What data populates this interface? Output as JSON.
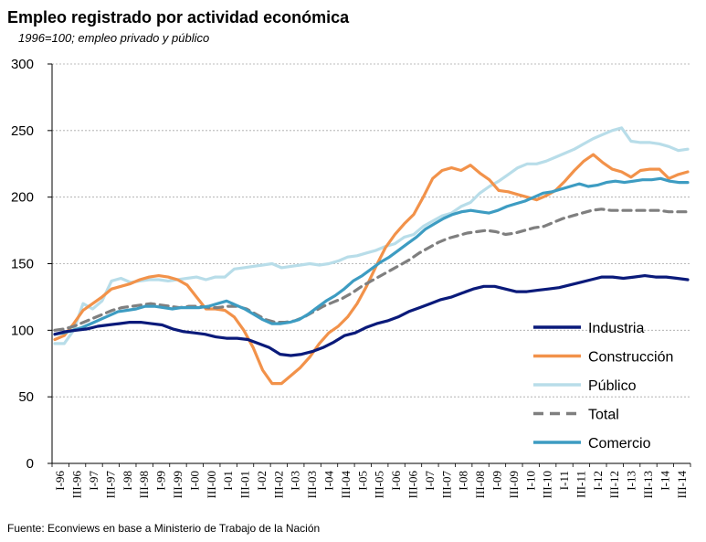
{
  "chart_data": {
    "type": "line",
    "title": "Empleo registrado por actividad económica",
    "subtitle": "1996=100; empleo privado y público",
    "source": "Fuente: Econviews en base a Ministerio de Trabajo de la Nación",
    "ylim": [
      0,
      300
    ],
    "yticks": [
      0,
      50,
      100,
      150,
      200,
      250,
      300
    ],
    "grid": "horizontal dashed",
    "legend_position": "bottom-right",
    "x_tick_labels": [
      "I-96",
      "III-96",
      "I-97",
      "III-97",
      "I-98",
      "III-98",
      "I-99",
      "III-99",
      "I-00",
      "III-00",
      "I-01",
      "III-01",
      "I-02",
      "III-02",
      "I-03",
      "III-03",
      "I-04",
      "III-04",
      "I-05",
      "III-05",
      "I-06",
      "III-06",
      "I-07",
      "III-07",
      "I-08",
      "III-08",
      "I-09",
      "III-09",
      "I-10",
      "III-10",
      "I-11",
      "III-11",
      "I-12",
      "III-12",
      "I-13",
      "III-13",
      "I-14",
      "III-14"
    ],
    "series": [
      {
        "name": "Industria",
        "color": "#0a1a7a",
        "dash": "solid",
        "values": [
          97,
          99,
          100,
          101,
          103,
          104,
          105,
          106,
          106,
          105,
          104,
          101,
          99,
          98,
          97,
          95,
          94,
          94,
          93,
          90,
          87,
          82,
          81,
          82,
          84,
          87,
          91,
          96,
          98,
          102,
          105,
          107,
          110,
          114,
          117,
          120,
          123,
          125,
          128,
          131,
          133,
          133,
          131,
          129,
          129,
          130,
          131,
          132,
          134,
          136,
          138,
          140,
          140,
          139,
          140,
          141,
          140,
          140,
          139,
          138
        ]
      },
      {
        "name": "Construcción",
        "color": "#f2924a",
        "dash": "solid",
        "values": [
          93,
          96,
          105,
          115,
          120,
          125,
          131,
          133,
          135,
          138,
          140,
          141,
          140,
          138,
          134,
          125,
          116,
          116,
          115,
          110,
          100,
          87,
          70,
          60,
          60,
          66,
          72,
          80,
          90,
          98,
          103,
          110,
          120,
          133,
          148,
          162,
          172,
          180,
          187,
          200,
          214,
          220,
          222,
          220,
          224,
          218,
          213,
          205,
          204,
          202,
          200,
          198,
          201,
          205,
          212,
          220,
          227,
          232,
          226,
          221,
          219,
          215,
          220,
          221,
          221,
          214,
          217,
          219
        ]
      },
      {
        "name": "Público",
        "color": "#b8dde9",
        "dash": "solid",
        "values": [
          90,
          90,
          100,
          120,
          116,
          122,
          137,
          139,
          136,
          137,
          138,
          138,
          137,
          138,
          139,
          140,
          138,
          140,
          140,
          146,
          147,
          148,
          149,
          150,
          147,
          148,
          149,
          150,
          149,
          150,
          152,
          155,
          156,
          158,
          160,
          163,
          165,
          170,
          172,
          178,
          182,
          186,
          188,
          193,
          196,
          203,
          208,
          212,
          217,
          222,
          225,
          225,
          227,
          230,
          233,
          236,
          240,
          244,
          247,
          250,
          252,
          242,
          241,
          241,
          240,
          238,
          235,
          236
        ]
      },
      {
        "name": "Total",
        "color": "#7f7f7f",
        "dash": "dashed",
        "values": [
          100,
          101,
          103,
          106,
          109,
          112,
          115,
          117,
          118,
          119,
          120,
          119,
          118,
          117,
          118,
          118,
          117,
          117,
          118,
          118,
          116,
          112,
          108,
          106,
          106,
          107,
          110,
          114,
          118,
          121,
          124,
          128,
          133,
          137,
          141,
          145,
          149,
          153,
          158,
          162,
          166,
          169,
          171,
          173,
          174,
          175,
          174,
          172,
          173,
          175,
          177,
          178,
          181,
          184,
          186,
          188,
          190,
          191,
          190,
          190,
          190,
          190,
          190,
          190,
          189,
          189,
          189
        ]
      },
      {
        "name": "Comercio",
        "color": "#3d9cc2",
        "dash": "solid",
        "values": [
          97,
          98,
          100,
          102,
          105,
          108,
          111,
          114,
          115,
          116,
          118,
          118,
          117,
          116,
          117,
          117,
          117,
          118,
          120,
          122,
          119,
          116,
          112,
          108,
          105,
          105,
          106,
          108,
          112,
          117,
          122,
          126,
          131,
          137,
          141,
          146,
          151,
          155,
          160,
          165,
          170,
          176,
          180,
          184,
          187,
          189,
          190,
          189,
          188,
          190,
          193,
          195,
          197,
          200,
          203,
          204,
          206,
          208,
          210,
          208,
          209,
          211,
          212,
          211,
          212,
          213,
          213,
          214,
          212,
          211,
          211
        ]
      }
    ]
  }
}
